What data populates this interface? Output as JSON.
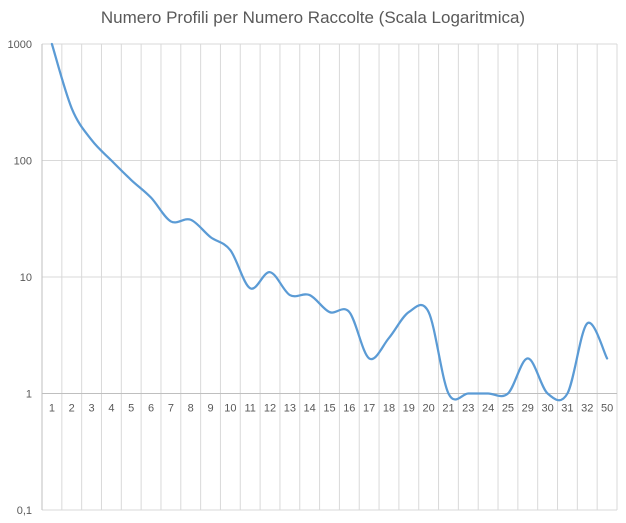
{
  "chart_data": {
    "type": "line",
    "title": "Numero Profili per Numero Raccolte (Scala Logaritmica)",
    "xlabel": "",
    "ylabel": "",
    "yscale": "log",
    "ylim": [
      0.1,
      1000
    ],
    "y_ticks": [
      0.1,
      1,
      10,
      100,
      1000
    ],
    "y_tick_labels": [
      "0,1",
      "1",
      "10",
      "100",
      "1000"
    ],
    "categories": [
      "1",
      "2",
      "3",
      "4",
      "5",
      "6",
      "7",
      "8",
      "9",
      "10",
      "11",
      "12",
      "13",
      "14",
      "15",
      "16",
      "17",
      "18",
      "19",
      "20",
      "21",
      "23",
      "24",
      "25",
      "29",
      "30",
      "31",
      "32",
      "50"
    ],
    "values": [
      1000,
      280,
      150,
      100,
      68,
      48,
      30,
      31,
      22,
      17,
      8,
      11,
      7,
      7,
      5,
      5,
      2,
      3,
      5,
      5,
      1,
      1,
      1,
      1,
      2,
      1,
      1,
      4,
      2
    ],
    "grid": true,
    "legend": "none",
    "line_color": "#5B9BD5",
    "grid_color": "#d9d9d9",
    "axis_color": "#bfbfbf",
    "text_color": "#595959"
  }
}
